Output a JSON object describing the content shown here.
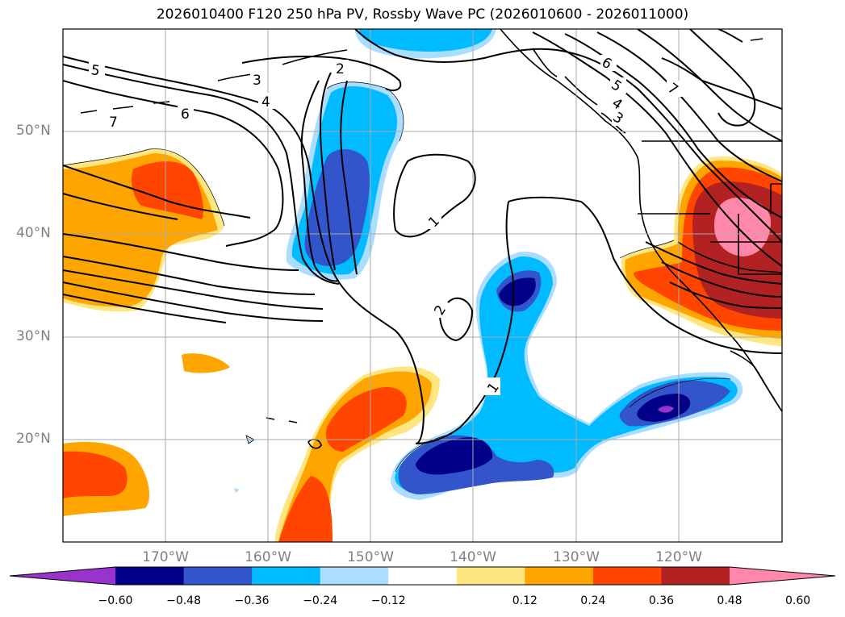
{
  "title": "2026010400 F120 250 hPa PV, Rossby Wave PC (2026010600 - 2026011000)",
  "latitude_labels": [
    "50°N",
    "40°N",
    "30°N",
    "20°N"
  ],
  "longitude_labels": [
    "170°W",
    "160°W",
    "150°W",
    "140°W",
    "130°W",
    "120°W"
  ],
  "contour_labels": [
    "5",
    "7",
    "6",
    "3",
    "4",
    "2",
    "1",
    "2",
    "1",
    "6",
    "5",
    "4",
    "3",
    "7"
  ],
  "colorbar": {
    "tick_labels": [
      "−0.60",
      "−0.48",
      "−0.36",
      "−0.24",
      "−0.12",
      "0.12",
      "0.24",
      "0.36",
      "0.48",
      "0.60"
    ],
    "colors": [
      "#9933cc",
      "#000088",
      "#3355cc",
      "#00bbff",
      "#aaddff",
      "#ffffff",
      "#ffe680",
      "#ffa500",
      "#ff4500",
      "#b22222",
      "#ff88aa"
    ]
  },
  "colors": {
    "land_outline": "#000000",
    "grid": "#aaaaaa",
    "contour": "#000000"
  }
}
